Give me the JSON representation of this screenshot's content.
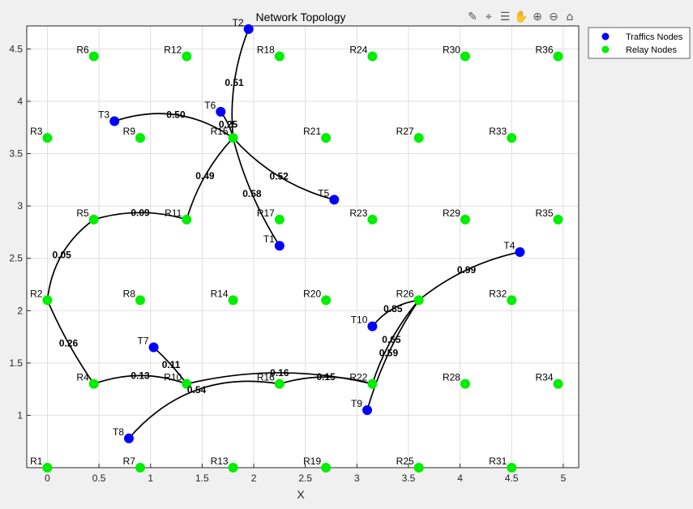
{
  "chart_data": {
    "type": "scatter",
    "title": "Network Topology",
    "xlabel": "X",
    "ylabel": "",
    "xlim": [
      -0.2,
      5.15
    ],
    "ylim": [
      0.5,
      4.72
    ],
    "xticks": [
      0,
      0.5,
      1,
      1.5,
      2,
      2.5,
      3,
      3.5,
      4,
      4.5,
      5
    ],
    "yticks": [
      1,
      1.5,
      2,
      2.5,
      3,
      3.5,
      4,
      4.5
    ],
    "grid": true,
    "legend_position": "outside-top-right",
    "legend": [
      {
        "label": "Traffics Nodes",
        "color": "#0000ff"
      },
      {
        "label": "Relay Nodes",
        "color": "#00ee00"
      }
    ],
    "relay_nodes": [
      {
        "name": "R1",
        "x": 0,
        "y": 0.5
      },
      {
        "name": "R2",
        "x": 0,
        "y": 2.1
      },
      {
        "name": "R3",
        "x": 0,
        "y": 3.65
      },
      {
        "name": "R4",
        "x": 0.45,
        "y": 1.3
      },
      {
        "name": "R5",
        "x": 0.45,
        "y": 2.87
      },
      {
        "name": "R6",
        "x": 0.45,
        "y": 4.43
      },
      {
        "name": "R7",
        "x": 0.9,
        "y": 0.5
      },
      {
        "name": "R8",
        "x": 0.9,
        "y": 2.1
      },
      {
        "name": "R9",
        "x": 0.9,
        "y": 3.65
      },
      {
        "name": "R10",
        "x": 1.35,
        "y": 1.3
      },
      {
        "name": "R11",
        "x": 1.35,
        "y": 2.87
      },
      {
        "name": "R12",
        "x": 1.35,
        "y": 4.43
      },
      {
        "name": "R13",
        "x": 1.8,
        "y": 0.5
      },
      {
        "name": "R14",
        "x": 1.8,
        "y": 2.1
      },
      {
        "name": "R15",
        "x": 1.8,
        "y": 3.65
      },
      {
        "name": "R16",
        "x": 2.25,
        "y": 1.3
      },
      {
        "name": "R17",
        "x": 2.25,
        "y": 2.87
      },
      {
        "name": "R18",
        "x": 2.25,
        "y": 4.43
      },
      {
        "name": "R19",
        "x": 2.7,
        "y": 0.5
      },
      {
        "name": "R20",
        "x": 2.7,
        "y": 2.1
      },
      {
        "name": "R21",
        "x": 2.7,
        "y": 3.65
      },
      {
        "name": "R22",
        "x": 3.15,
        "y": 1.3
      },
      {
        "name": "R23",
        "x": 3.15,
        "y": 2.87
      },
      {
        "name": "R24",
        "x": 3.15,
        "y": 4.43
      },
      {
        "name": "R25",
        "x": 3.6,
        "y": 0.5
      },
      {
        "name": "R26",
        "x": 3.6,
        "y": 2.1
      },
      {
        "name": "R27",
        "x": 3.6,
        "y": 3.65
      },
      {
        "name": "R28",
        "x": 4.05,
        "y": 1.3
      },
      {
        "name": "R29",
        "x": 4.05,
        "y": 2.87
      },
      {
        "name": "R30",
        "x": 4.05,
        "y": 4.43
      },
      {
        "name": "R31",
        "x": 4.5,
        "y": 0.5
      },
      {
        "name": "R32",
        "x": 4.5,
        "y": 2.1
      },
      {
        "name": "R33",
        "x": 4.5,
        "y": 3.65
      },
      {
        "name": "R34",
        "x": 4.95,
        "y": 1.3
      },
      {
        "name": "R35",
        "x": 4.95,
        "y": 2.87
      },
      {
        "name": "R36",
        "x": 4.95,
        "y": 4.43
      }
    ],
    "traffic_nodes": [
      {
        "name": "T1",
        "x": 2.25,
        "y": 2.62
      },
      {
        "name": "T2",
        "x": 1.95,
        "y": 4.69
      },
      {
        "name": "T3",
        "x": 0.65,
        "y": 3.81
      },
      {
        "name": "T4",
        "x": 4.58,
        "y": 2.56
      },
      {
        "name": "T5",
        "x": 2.78,
        "y": 3.06
      },
      {
        "name": "T6",
        "x": 1.68,
        "y": 3.9
      },
      {
        "name": "T7",
        "x": 1.03,
        "y": 1.65
      },
      {
        "name": "T8",
        "x": 0.79,
        "y": 0.78
      },
      {
        "name": "T9",
        "x": 3.1,
        "y": 1.05
      },
      {
        "name": "T10",
        "x": 3.15,
        "y": 1.85
      }
    ],
    "links": [
      {
        "from": "T2",
        "to": "R15",
        "weight": "0.51",
        "bend": 0.12
      },
      {
        "from": "T3",
        "to": "R15",
        "weight": "0.50",
        "bend": -0.25
      },
      {
        "from": "T6",
        "to": "R15",
        "weight": "0.25",
        "bend": -0.1
      },
      {
        "from": "R15",
        "to": "T5",
        "weight": "0.52",
        "bend": 0.15
      },
      {
        "from": "R15",
        "to": "T1",
        "weight": "0.58",
        "bend": 0.08
      },
      {
        "from": "R11",
        "to": "R15",
        "weight": "0.49",
        "bend": -0.12
      },
      {
        "from": "R5",
        "to": "R11",
        "weight": "0.09",
        "bend": -0.15
      },
      {
        "from": "R2",
        "to": "R5",
        "weight": "0.05",
        "bend": -0.22
      },
      {
        "from": "R2",
        "to": "R4",
        "weight": "0.26",
        "bend": 0.05
      },
      {
        "from": "R4",
        "to": "R10",
        "weight": "0.13",
        "bend": -0.18
      },
      {
        "from": "T7",
        "to": "R10",
        "weight": "0.11",
        "bend": -0.05
      },
      {
        "from": "T8",
        "to": "R16",
        "weight": "0.54",
        "bend": -0.28
      },
      {
        "from": "R10",
        "to": "R22",
        "weight": "0.16",
        "bend": -0.12
      },
      {
        "from": "R16",
        "to": "R22",
        "weight": "0.15",
        "bend": -0.15
      },
      {
        "from": "R22",
        "to": "R26",
        "weight": "0.65",
        "bend": -0.1
      },
      {
        "from": "T9",
        "to": "R26",
        "weight": "0.59",
        "bend": -0.08
      },
      {
        "from": "T10",
        "to": "R26",
        "weight": "0.85",
        "bend": -0.2
      },
      {
        "from": "R26",
        "to": "T4",
        "weight": "0.99",
        "bend": -0.12
      }
    ]
  },
  "toolbar": {
    "icons": [
      "brush-icon",
      "data-tip-icon",
      "legend-icon",
      "pan-icon",
      "zoom-in-icon",
      "zoom-out-icon",
      "home-icon"
    ]
  }
}
